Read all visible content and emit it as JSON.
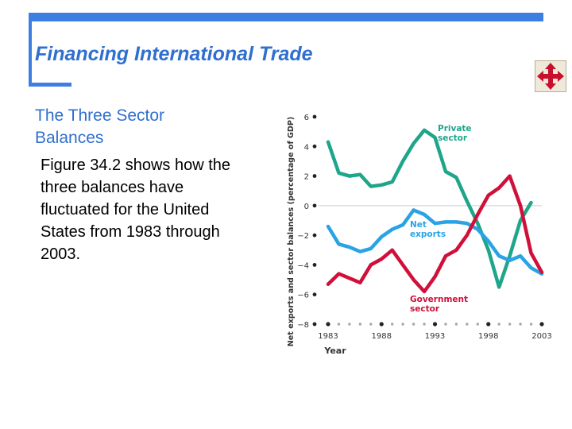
{
  "slide": {
    "title": "Financing International Trade",
    "heading_lines": [
      "The Three Sector",
      "Balances"
    ],
    "body_lines": [
      "Figure 34.2 shows how the",
      "three balances have",
      "fluctuated for the United",
      "States from 1983 through",
      "2003."
    ]
  },
  "nav": {
    "icon": "move-arrows-icon",
    "color": "#c8102e"
  },
  "colors": {
    "accent": "#3d7fe0",
    "title": "#2f6fd0"
  },
  "chart_data": {
    "type": "line",
    "ylabel": "Net exports and sector balances (percentage of GDP)",
    "xlabel": "Year",
    "xlim": [
      1983,
      2003
    ],
    "ylim": [
      -8,
      6
    ],
    "x_ticks": [
      "1983",
      "1988",
      "1993",
      "1998",
      "2003"
    ],
    "y_ticks": [
      "6",
      "4",
      "2",
      "0",
      "−2",
      "−4",
      "−6",
      "−8"
    ],
    "grid": false,
    "zero_line": true,
    "x": [
      1983,
      1984,
      1985,
      1986,
      1987,
      1988,
      1989,
      1990,
      1991,
      1992,
      1993,
      1994,
      1995,
      1996,
      1997,
      1998,
      1999,
      2000,
      2001,
      2002,
      2003
    ],
    "series": [
      {
        "name": "Private sector",
        "label_lines": [
          "Private",
          "sector"
        ],
        "color": "#1fa58a",
        "values": [
          4.3,
          2.2,
          2.0,
          2.1,
          1.3,
          1.4,
          1.6,
          3.0,
          4.2,
          5.1,
          4.6,
          2.3,
          1.9,
          0.3,
          -1.2,
          -3.0,
          -5.5,
          -3.4,
          -1.0,
          0.2,
          null
        ]
      },
      {
        "name": "Net exports",
        "label_lines": [
          "Net",
          "exports"
        ],
        "color": "#2aa3e6",
        "values": [
          -1.4,
          -2.6,
          -2.8,
          -3.1,
          -2.9,
          -2.1,
          -1.6,
          -1.3,
          -0.3,
          -0.6,
          -1.2,
          -1.1,
          -1.1,
          -1.2,
          -1.6,
          -2.4,
          -3.4,
          -3.7,
          -3.4,
          -4.2,
          -4.6
        ]
      },
      {
        "name": "Government sector",
        "label_lines": [
          "Government",
          "sector"
        ],
        "color": "#d0103a",
        "values": [
          -5.3,
          -4.6,
          -4.9,
          -5.2,
          -4.0,
          -3.6,
          -3.0,
          -4.0,
          -5.0,
          -5.8,
          -4.8,
          -3.4,
          -3.0,
          -2.0,
          -0.6,
          0.7,
          1.2,
          2.0,
          0.0,
          -3.2,
          -4.5
        ]
      }
    ]
  }
}
